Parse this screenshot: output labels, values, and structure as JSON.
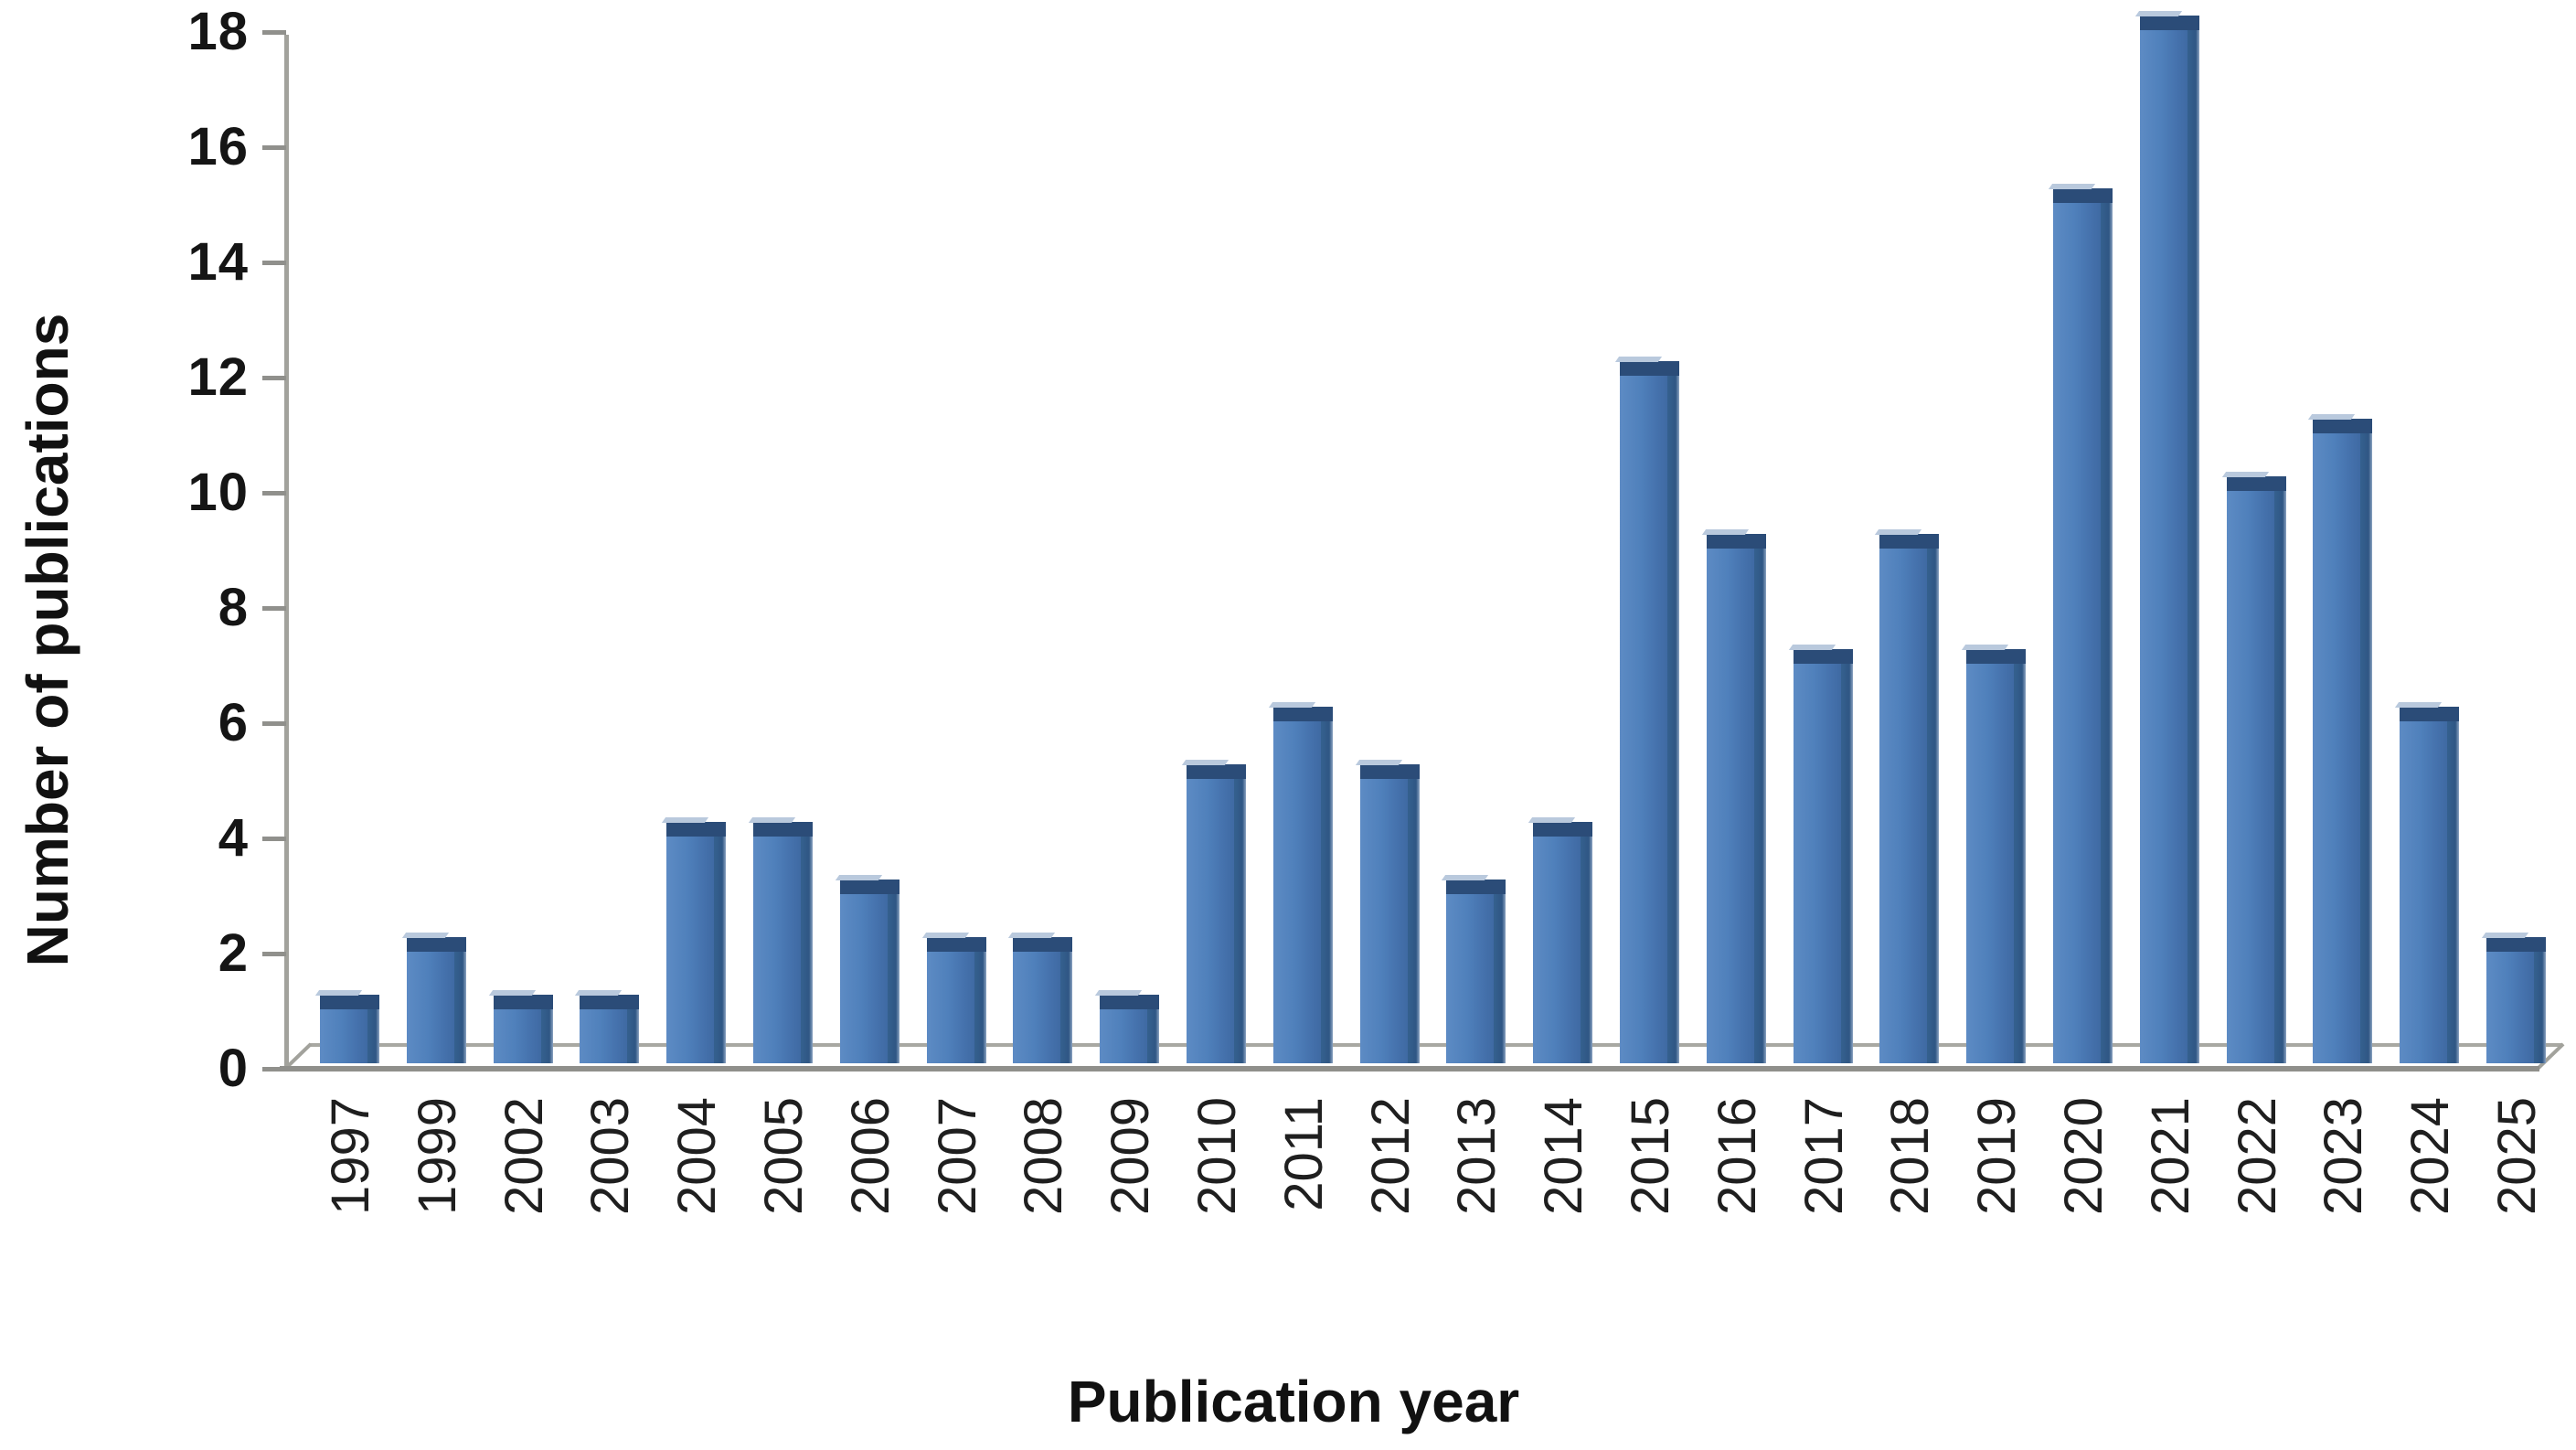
{
  "figure": {
    "y_axis_title": "Number of publications",
    "x_axis_title": "Publication year"
  },
  "chart_data": {
    "type": "bar",
    "title": "",
    "xlabel": "Publication year",
    "ylabel": "Number of publications",
    "categories": [
      "1997",
      "1999",
      "2002",
      "2003",
      "2004",
      "2005",
      "2006",
      "2007",
      "2008",
      "2009",
      "2010",
      "2011",
      "2012",
      "2013",
      "2014",
      "2015",
      "2016",
      "2017",
      "2018",
      "2019",
      "2020",
      "2021",
      "2022",
      "2023",
      "2024",
      "2025"
    ],
    "values": [
      1,
      2,
      1,
      1,
      4,
      4,
      3,
      2,
      2,
      1,
      5,
      6,
      5,
      3,
      4,
      12,
      9,
      7,
      9,
      7,
      15,
      18,
      10,
      11,
      6,
      2
    ],
    "yticks": [
      "0",
      "2",
      "4",
      "6",
      "8",
      "10",
      "12",
      "14",
      "16",
      "18"
    ],
    "ylim": [
      0,
      18
    ],
    "ytick_interval": 2,
    "grid": false,
    "legend": "none",
    "style": "3d-column",
    "colors": {
      "bar_front": "#4f80bb",
      "bar_side": "#35618f",
      "bar_top": "#2b4c78",
      "bar_top_highlight": "#b9c9dd",
      "axis_line": "#a2a29c",
      "floor_line": "#8f8f8b",
      "label_text": "#1f1f1f"
    }
  }
}
